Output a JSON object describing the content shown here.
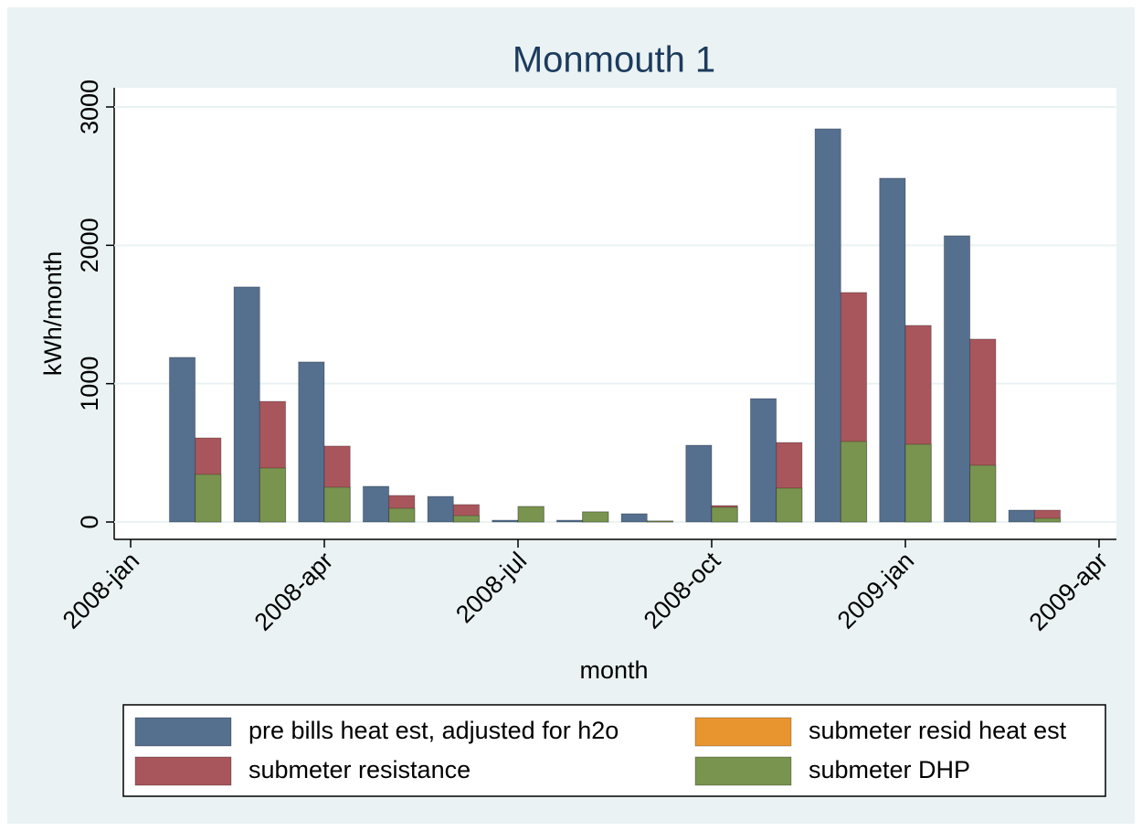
{
  "chart_data": {
    "type": "bar",
    "title": "Monmouth 1",
    "x_label": "month",
    "y_label": "kWh/month",
    "x": [
      "2008-feb",
      "2008-mar",
      "2008-apr",
      "2008-may",
      "2008-jun",
      "2008-jul",
      "2008-aug",
      "2008-sep",
      "2008-oct",
      "2008-nov",
      "2008-dec",
      "2009-jan",
      "2009-feb",
      "2009-mar"
    ],
    "xlim": [
      "2008-jan",
      "2009-apr"
    ],
    "xticks": [
      "2008-jan",
      "2008-apr",
      "2008-jul",
      "2008-oct",
      "2009-jan",
      "2009-apr"
    ],
    "ylim": [
      0,
      3000
    ],
    "yticks": [
      0,
      1000,
      2000,
      3000
    ],
    "grid": true,
    "legend": "bottom",
    "series": [
      {
        "name": "pre bills heat est, adjusted for h2o",
        "color": "#556f8f",
        "values": [
          1190,
          1699,
          1157,
          258,
          185,
          13,
          13,
          60,
          555,
          892,
          2842,
          2485,
          2069,
          86
        ]
      },
      {
        "name": "submeter resid heat est",
        "color": "#e8942f",
        "values": [
          null,
          null,
          null,
          null,
          null,
          null,
          null,
          null,
          null,
          null,
          null,
          null,
          null,
          null
        ]
      },
      {
        "name": "submeter resistance",
        "color": "#a8565c",
        "values": [
          608,
          872,
          549,
          192,
          126,
          112,
          73,
          7,
          119,
          575,
          1659,
          1421,
          1322,
          86
        ]
      },
      {
        "name": "submeter DHP",
        "color": "#78944f",
        "values": [
          344,
          390,
          251,
          99,
          46,
          112,
          73,
          7,
          106,
          245,
          582,
          562,
          410,
          26
        ]
      }
    ]
  }
}
